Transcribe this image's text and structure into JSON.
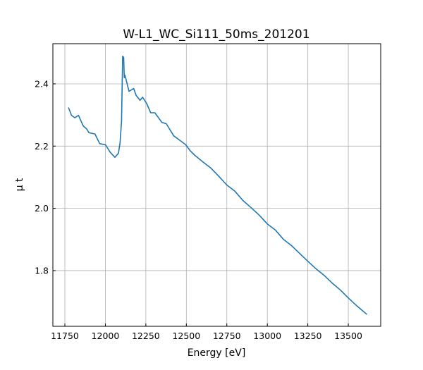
{
  "chart_data": {
    "type": "line",
    "title": "W-L1_WC_Si111_50ms_201201",
    "xlabel": "Energy [eV]",
    "ylabel": "μ t",
    "xlim": [
      11676,
      13700
    ],
    "ylim": [
      1.621,
      2.529
    ],
    "xticks": [
      11750,
      12000,
      12250,
      12500,
      12750,
      13000,
      13250,
      13500
    ],
    "yticks": [
      1.8,
      2.0,
      2.2,
      2.4
    ],
    "xtick_labels": [
      "11750",
      "12000",
      "12250",
      "12500",
      "12750",
      "13000",
      "13250",
      "13500"
    ],
    "ytick_labels": [
      "1.8",
      "2.0",
      "2.2",
      "2.4"
    ],
    "grid": true,
    "line_color": "#1f77b4",
    "series": [
      {
        "x": [
          11772,
          11791,
          11812,
          11834,
          11863,
          11885,
          11899,
          11936,
          11965,
          12001,
          12030,
          12059,
          12081,
          12091,
          12100,
          12107,
          12113,
          12117,
          12121,
          12146,
          12175,
          12190,
          12214,
          12230,
          12255,
          12280,
          12306,
          12349,
          12376,
          12422,
          12495,
          12524,
          12553,
          12600,
          12650,
          12700,
          12750,
          12800,
          12850,
          12900,
          12950,
          13000,
          13050,
          13100,
          13150,
          13200,
          13250,
          13300,
          13350,
          13400,
          13450,
          13500,
          13550,
          13615
        ],
        "y": [
          2.324,
          2.299,
          2.291,
          2.299,
          2.265,
          2.255,
          2.243,
          2.239,
          2.208,
          2.204,
          2.18,
          2.164,
          2.177,
          2.211,
          2.28,
          2.489,
          2.485,
          2.42,
          2.428,
          2.376,
          2.385,
          2.363,
          2.347,
          2.357,
          2.337,
          2.307,
          2.307,
          2.276,
          2.272,
          2.233,
          2.205,
          2.185,
          2.17,
          2.15,
          2.13,
          2.103,
          2.075,
          2.055,
          2.025,
          2.002,
          1.978,
          1.95,
          1.93,
          1.9,
          1.88,
          1.855,
          1.83,
          1.806,
          1.785,
          1.76,
          1.738,
          1.712,
          1.688,
          1.659
        ]
      }
    ]
  }
}
